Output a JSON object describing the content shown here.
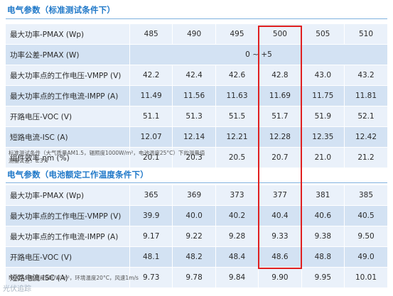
{
  "section1": {
    "title": "电气参数（标准测试条件下）",
    "rows": [
      {
        "label": "最大功率-PMAX (Wp)",
        "values": [
          "485",
          "490",
          "495",
          "500",
          "505",
          "510"
        ]
      },
      {
        "label": "功率公差-PMAX (W)",
        "span": "0 ~ +5"
      },
      {
        "label": "最大功率点的工作电压-VMPP (V)",
        "values": [
          "42.2",
          "42.4",
          "42.6",
          "42.8",
          "43.0",
          "43.2"
        ]
      },
      {
        "label": "最大功率点的工作电流-IMPP (A)",
        "values": [
          "11.49",
          "11.56",
          "11.63",
          "11.69",
          "11.75",
          "11.81"
        ]
      },
      {
        "label": "开路电压-VOC (V)",
        "values": [
          "51.1",
          "51.3",
          "51.5",
          "51.7",
          "51.9",
          "52.1"
        ]
      },
      {
        "label": "短路电流-ISC (A)",
        "values": [
          "12.07",
          "12.14",
          "12.21",
          "12.28",
          "12.35",
          "12.42"
        ]
      },
      {
        "label": "组件效率 ηm (%)",
        "values": [
          "20.1",
          "20.3",
          "20.5",
          "20.7",
          "21.0",
          "21.2"
        ]
      }
    ],
    "note_line1": "标准测试条件（大气质量AM1.5，辐照度1000W/m²，电池温度25°C）下的测量值",
    "note_line2": "测量公差：±3%"
  },
  "section2": {
    "title": "电气参数（电池额定工作温度条件下）",
    "rows": [
      {
        "label": "最大功率-PMAX (Wp)",
        "values": [
          "365",
          "369",
          "373",
          "377",
          "381",
          "385"
        ]
      },
      {
        "label": "最大功率点的工作电压-VMPP (V)",
        "values": [
          "39.9",
          "40.0",
          "40.2",
          "40.4",
          "40.6",
          "40.5"
        ]
      },
      {
        "label": "最大功率点的工作电流-IMPP (A)",
        "values": [
          "9.17",
          "9.22",
          "9.28",
          "9.33",
          "9.38",
          "9.50"
        ]
      },
      {
        "label": "开路电压-VOC (V)",
        "values": [
          "48.1",
          "48.2",
          "48.4",
          "48.6",
          "48.8",
          "49.0"
        ]
      },
      {
        "label": "短路电流-ISC (A)",
        "values": [
          "9.73",
          "9.78",
          "9.84",
          "9.90",
          "9.95",
          "10.01"
        ]
      }
    ],
    "note": "NOCT：辐照度800W/m²，环境温度20°C，风速1m/s"
  },
  "watermark": "光伏追踪",
  "colors": {
    "title": "#1f78c8",
    "row_light": "#eaf1fa",
    "row_dark": "#d3e2f3",
    "highlight": "#e02020"
  }
}
